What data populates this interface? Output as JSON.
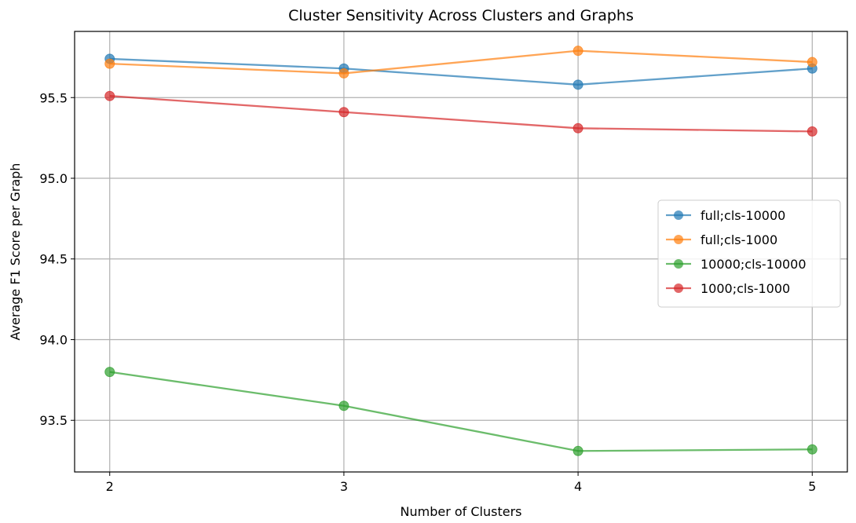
{
  "chart_data": {
    "type": "line",
    "title": "Cluster Sensitivity Across Clusters and Graphs",
    "xlabel": "Number of Clusters",
    "ylabel": "Average F1 Score per Graph",
    "x": [
      2,
      3,
      4,
      5
    ],
    "x_ticks": [
      "2",
      "3",
      "4",
      "5"
    ],
    "y_ticks": [
      "93.5",
      "94.0",
      "94.5",
      "95.0",
      "95.5"
    ],
    "y_tick_values": [
      93.5,
      94.0,
      94.5,
      95.0,
      95.5
    ],
    "xlim": [
      1.85,
      5.15
    ],
    "ylim": [
      93.18,
      95.91
    ],
    "grid": true,
    "legend_position": "center-right",
    "series": [
      {
        "name": "full;cls-10000",
        "color": "#1f77b4",
        "values": [
          95.74,
          95.68,
          95.58,
          95.68
        ]
      },
      {
        "name": "full;cls-1000",
        "color": "#ff7f0e",
        "values": [
          95.71,
          95.65,
          95.79,
          95.72
        ]
      },
      {
        "name": "10000;cls-10000",
        "color": "#2ca02c",
        "values": [
          93.8,
          93.59,
          93.31,
          93.32
        ]
      },
      {
        "name": "1000;cls-1000",
        "color": "#d62728",
        "values": [
          95.51,
          95.41,
          95.31,
          95.29
        ]
      }
    ]
  }
}
